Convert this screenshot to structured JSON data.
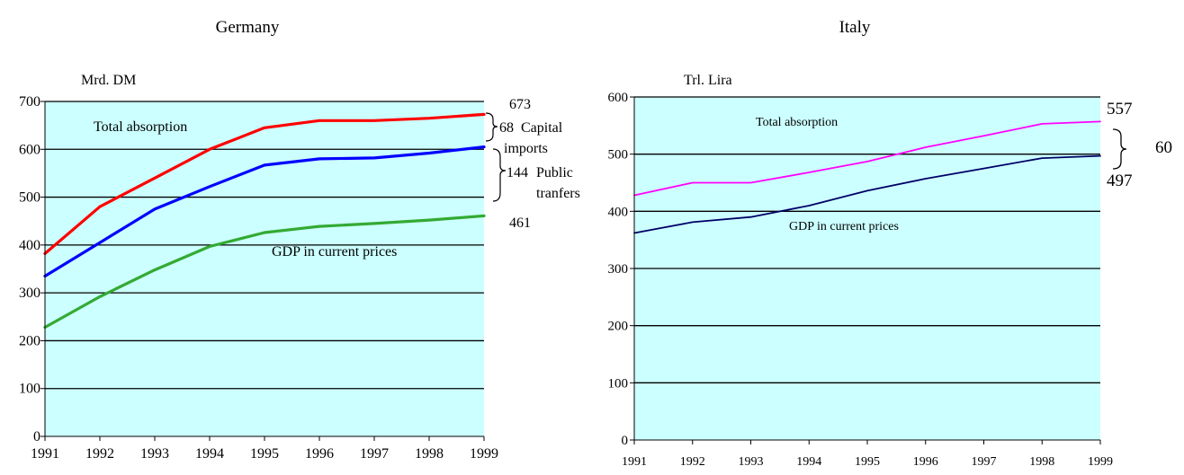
{
  "chart_data": [
    {
      "type": "line",
      "title": "Germany",
      "ylabel": "Mrd. DM",
      "x": [
        "1991",
        "1992",
        "1993",
        "1994",
        "1995",
        "1996",
        "1997",
        "1998",
        "1999"
      ],
      "ylim": [
        0,
        700
      ],
      "yticks": [
        "0",
        "100",
        "200",
        "300",
        "400",
        "500",
        "600",
        "700"
      ],
      "grid": true,
      "plot_bg": "#ccffff",
      "series": [
        {
          "name": "Total absorption",
          "color": "#ff0000",
          "values": [
            382,
            480,
            540,
            600,
            645,
            660,
            660,
            665,
            673
          ]
        },
        {
          "name": "",
          "color": "#0000ff",
          "values": [
            335,
            405,
            475,
            522,
            567,
            580,
            582,
            592,
            605
          ]
        },
        {
          "name": "GDP in current prices",
          "color": "#33aa33",
          "values": [
            228,
            292,
            348,
            397,
            426,
            439,
            445,
            452,
            461
          ]
        }
      ],
      "end_labels": {
        "top": "673",
        "bottom": "461"
      },
      "annotations": {
        "gap_capital": {
          "value": "68",
          "line1": "Capital",
          "line2": "imports"
        },
        "gap_public": {
          "value": "144",
          "line1": "Public",
          "line2": "tranfers"
        }
      }
    },
    {
      "type": "line",
      "title": "Italy",
      "ylabel": "Trl. Lira",
      "x": [
        "1991",
        "1992",
        "1993",
        "1994",
        "1995",
        "1996",
        "1997",
        "1998",
        "1999"
      ],
      "ylim": [
        0,
        600
      ],
      "yticks": [
        "0",
        "100",
        "200",
        "300",
        "400",
        "500",
        "600"
      ],
      "grid": true,
      "plot_bg": "#ccffff",
      "series": [
        {
          "name": "Total absorption",
          "color": "#ff00ff",
          "values": [
            428,
            450,
            450,
            468,
            487,
            512,
            532,
            553,
            557
          ]
        },
        {
          "name": "GDP in current prices",
          "color": "#000066",
          "values": [
            362,
            381,
            390,
            410,
            436,
            457,
            475,
            493,
            497
          ]
        }
      ],
      "end_labels": {
        "top": "557",
        "bottom": "497"
      },
      "annotations": {
        "gap": {
          "value": "60"
        }
      }
    }
  ]
}
